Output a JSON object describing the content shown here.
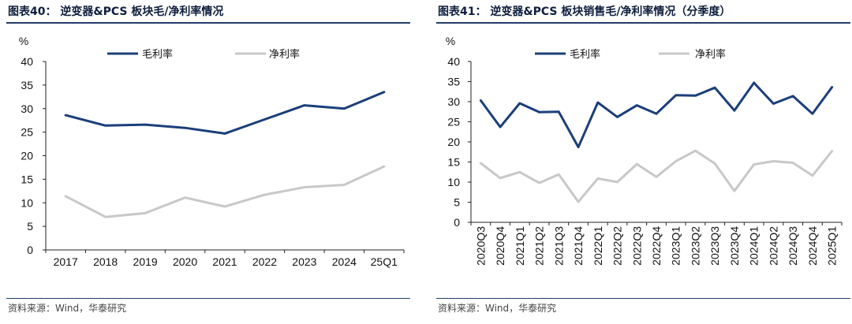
{
  "colors": {
    "gross": "#1b3f7a",
    "net": "#c8c8c8",
    "accent": "#233e6a"
  },
  "panels": [
    {
      "title": "图表40： 逆变器&PCS 板块毛/净利率情况",
      "source": "资料来源：Wind，华泰研究"
    },
    {
      "title": "图表41： 逆变器&PCS 板块销售毛/净利率情况（分季度）",
      "source": "资料来源：Wind，华泰研究"
    }
  ],
  "chart_data": [
    {
      "type": "line",
      "ylabel": "%",
      "ylim": [
        0,
        40
      ],
      "yticks": [
        0,
        5,
        10,
        15,
        20,
        25,
        30,
        35,
        40
      ],
      "legend": "top",
      "grid": false,
      "x": [
        "2017",
        "2018",
        "2019",
        "2020",
        "2021",
        "2022",
        "2023",
        "2024",
        "25Q1"
      ],
      "series": [
        {
          "name": "毛利率",
          "values": [
            28.6,
            26.4,
            26.6,
            25.9,
            24.7,
            27.7,
            30.7,
            30.0,
            33.5
          ]
        },
        {
          "name": "净利率",
          "values": [
            11.4,
            7.0,
            7.8,
            11.1,
            9.2,
            11.7,
            13.3,
            13.8,
            17.7
          ]
        }
      ]
    },
    {
      "type": "line",
      "ylabel": "%",
      "ylim": [
        0,
        40
      ],
      "yticks": [
        0,
        5,
        10,
        15,
        20,
        25,
        30,
        35,
        40
      ],
      "legend": "top",
      "grid": false,
      "x": [
        "2020Q3",
        "2020Q4",
        "2021Q1",
        "2021Q2",
        "2021Q3",
        "2021Q4",
        "2022Q1",
        "2022Q2",
        "2022Q3",
        "2022Q4",
        "2023Q1",
        "2023Q2",
        "2023Q3",
        "2023Q4",
        "2024Q1",
        "2024Q2",
        "2024Q3",
        "2024Q4",
        "2025Q1"
      ],
      "series": [
        {
          "name": "毛利率",
          "values": [
            30.3,
            23.7,
            29.6,
            27.4,
            27.5,
            18.7,
            29.8,
            26.2,
            29.1,
            27.0,
            31.6,
            31.5,
            33.5,
            27.8,
            34.7,
            29.5,
            31.4,
            27.0,
            33.6
          ]
        },
        {
          "name": "净利率",
          "values": [
            14.7,
            11.0,
            12.5,
            9.8,
            11.9,
            5.1,
            10.9,
            10.0,
            14.5,
            11.3,
            15.2,
            17.8,
            14.6,
            7.8,
            14.4,
            15.2,
            14.8,
            11.6,
            17.7
          ]
        }
      ]
    }
  ]
}
